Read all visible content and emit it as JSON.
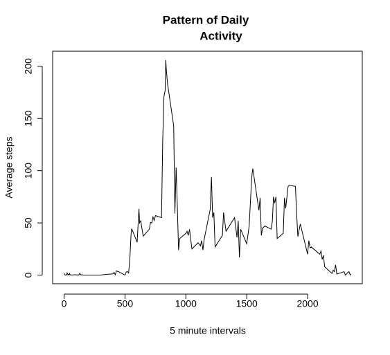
{
  "chart_data": {
    "type": "line",
    "title": [
      "Pattern of Daily",
      "Activity"
    ],
    "xlabel": "5 minute intervals",
    "ylabel": "Average steps",
    "x": [
      0,
      5,
      10,
      15,
      20,
      25,
      30,
      35,
      40,
      45,
      50,
      55,
      100,
      105,
      110,
      115,
      120,
      125,
      130,
      135,
      140,
      145,
      150,
      155,
      200,
      230,
      300,
      330,
      400,
      410,
      420,
      430,
      440,
      450,
      500,
      510,
      520,
      530,
      540,
      550,
      555,
      600,
      610,
      615,
      620,
      630,
      640,
      650,
      700,
      710,
      720,
      730,
      740,
      750,
      800,
      810,
      820,
      830,
      835,
      840,
      850,
      900,
      910,
      920,
      930,
      940,
      950,
      1000,
      1010,
      1020,
      1030,
      1040,
      1050,
      1100,
      1120,
      1130,
      1140,
      1150,
      1200,
      1210,
      1220,
      1230,
      1240,
      1300,
      1310,
      1330,
      1400,
      1420,
      1430,
      1440,
      1450,
      1500,
      1520,
      1540,
      1545,
      1550,
      1600,
      1610,
      1620,
      1630,
      1650,
      1700,
      1710,
      1720,
      1730,
      1740,
      1750,
      1800,
      1810,
      1820,
      1840,
      1850,
      1900,
      1910,
      1920,
      1940,
      2000,
      2010,
      2020,
      2030,
      2100,
      2110,
      2120,
      2130,
      2140,
      2200,
      2210,
      2220,
      2230,
      2240,
      2300,
      2310,
      2320,
      2330,
      2340,
      2350,
      2355
    ],
    "values": [
      1.7,
      0.3,
      0.1,
      0.2,
      0.1,
      2.1,
      0.5,
      0.9,
      0,
      1.5,
      0.3,
      0.1,
      0.4,
      0,
      0.2,
      0.3,
      0,
      1.1,
      1.8,
      0.2,
      0.2,
      0.4,
      0.3,
      0,
      0,
      0,
      0,
      0.5,
      1.2,
      2.6,
      0.3,
      4.1,
      3.5,
      3.1,
      0,
      3,
      3.3,
      2.1,
      16,
      39.5,
      44.5,
      31.5,
      53.8,
      63.5,
      50,
      52,
      44,
      37.4,
      44,
      50.5,
      49.9,
      55.7,
      52.3,
      57,
      55,
      129,
      171,
      177,
      206,
      196,
      183,
      143,
      59,
      103,
      66,
      24,
      35,
      40,
      42,
      38,
      44,
      34,
      25,
      31,
      28,
      33,
      24,
      34,
      63,
      94,
      55,
      60,
      27,
      38,
      60,
      42,
      55,
      36,
      52,
      17,
      44,
      30,
      47,
      92,
      98,
      102,
      62,
      74,
      38,
      45,
      47,
      44,
      51,
      75,
      69,
      75,
      35,
      40,
      74,
      64,
      85,
      86,
      85,
      58,
      37,
      49,
      20,
      33,
      26,
      27,
      20,
      23,
      15,
      19,
      8,
      1.6,
      4.6,
      3.3,
      9.8,
      1,
      3.3,
      0,
      1,
      2.6,
      3.3,
      0.2,
      1.1
    ],
    "color": "#000000",
    "xlim": [
      -94.2,
      2449.2
    ],
    "ylim": [
      -8.25,
      214.42
    ],
    "xticks": [
      0,
      500,
      1000,
      1500,
      2000
    ],
    "yticks": [
      0,
      50,
      100,
      150,
      200
    ]
  }
}
